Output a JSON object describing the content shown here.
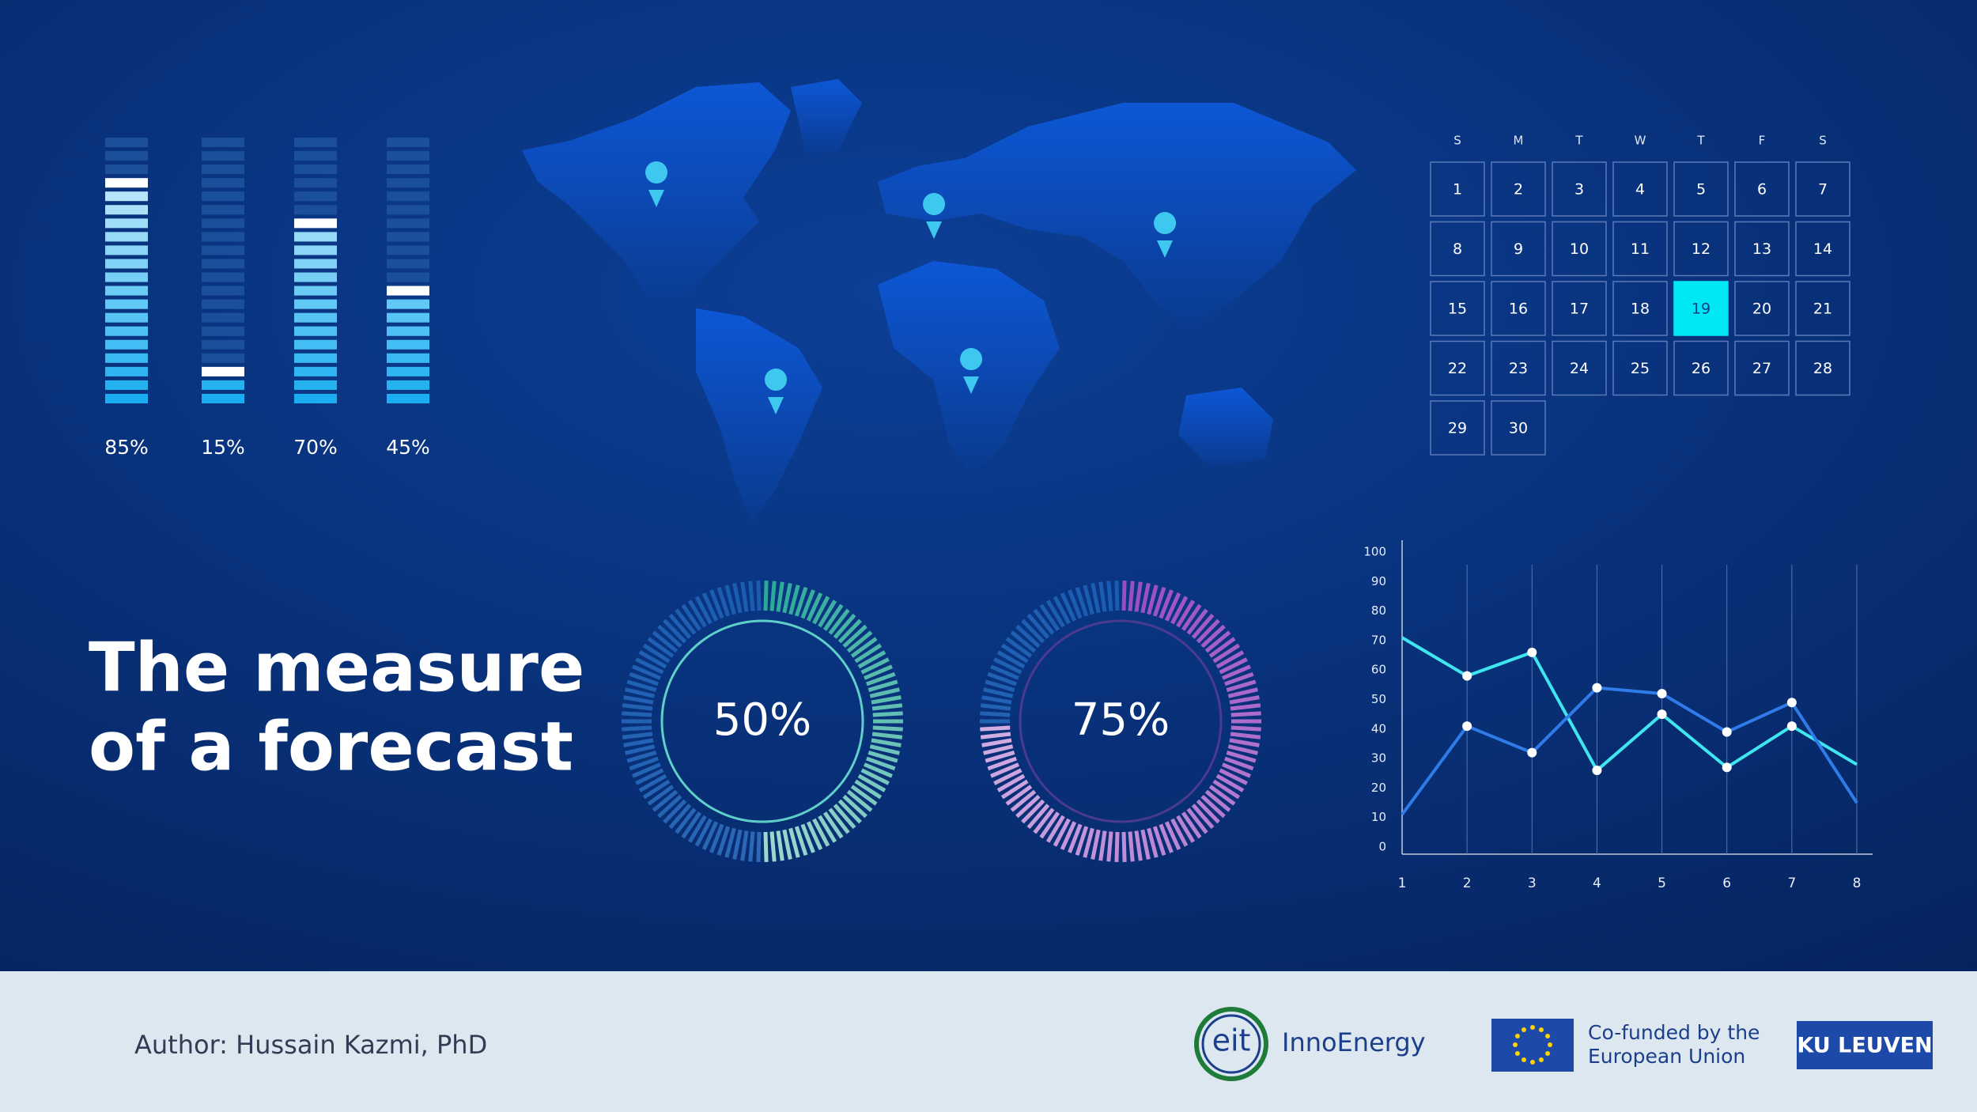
{
  "title": [
    "The measure",
    "of a forecast"
  ],
  "calendar": {
    "weekdays": [
      "S",
      "M",
      "T",
      "W",
      "T",
      "F",
      "S"
    ],
    "days": [
      1,
      2,
      3,
      4,
      5,
      6,
      7,
      8,
      9,
      10,
      11,
      12,
      13,
      14,
      15,
      16,
      17,
      18,
      19,
      20,
      21,
      22,
      23,
      24,
      25,
      26,
      27,
      28,
      29,
      30
    ],
    "highlight": 19,
    "color": "#00e8f2"
  },
  "chart_data": [
    {
      "type": "gauge-bars",
      "values": [
        85,
        15,
        70,
        45
      ],
      "value_labels": [
        "85%",
        "15%",
        "70%",
        "45%"
      ],
      "color": "#1aaef0"
    },
    {
      "type": "donut",
      "values": [
        50
      ],
      "value_labels": [
        "50%"
      ],
      "color": "#2aa898"
    },
    {
      "type": "donut",
      "values": [
        75
      ],
      "value_labels": [
        "75%"
      ],
      "color": "#9a4cc0"
    },
    {
      "type": "line",
      "x": [
        1,
        2,
        3,
        4,
        5,
        6,
        7,
        8
      ],
      "series": [
        {
          "color": "#3fe6ef",
          "values": [
            71,
            58,
            66,
            26,
            45,
            27,
            41,
            28
          ]
        },
        {
          "color": "#2f7be8",
          "values": [
            11,
            41,
            32,
            54,
            52,
            39,
            49,
            15
          ]
        }
      ],
      "xlim": [
        1,
        8
      ],
      "xticks": [
        1,
        2,
        3,
        4,
        5,
        6,
        7,
        8
      ],
      "ylim": [
        0,
        100
      ],
      "yticks": [
        0,
        10,
        20,
        30,
        40,
        50,
        60,
        70,
        80,
        90,
        100
      ],
      "grid": true
    }
  ],
  "footer": {
    "author": "Author: Hussain Kazmi, PhD",
    "eit": "eit",
    "inno": "InnoEnergy",
    "eu": [
      "Co-funded by the",
      "European Union"
    ],
    "ku": "KU LEUVEN"
  }
}
